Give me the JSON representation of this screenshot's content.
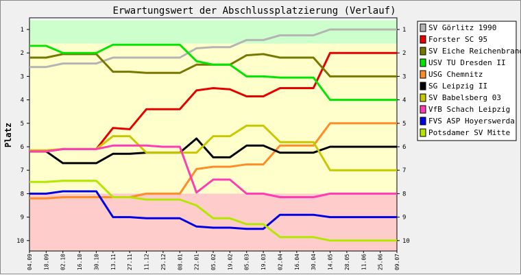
{
  "chart_data": {
    "type": "line",
    "title": "Erwartungswert der Abschlussplatzierung (Verlauf)",
    "ylabel": "Platz",
    "xlabel": "",
    "ylim": [
      1,
      10
    ],
    "y_ticks": [
      "1",
      "2",
      "3",
      "4",
      "5",
      "6",
      "7",
      "8",
      "9",
      "10"
    ],
    "y_inverted": true,
    "legend_position": "right",
    "zones": [
      {
        "from": 0.6,
        "to": 1.6,
        "color": "#ccffcc"
      },
      {
        "from": 1.6,
        "to": 8.0,
        "color": "#ffffcc"
      },
      {
        "from": 8.0,
        "to": 10.6,
        "color": "#ffcccc"
      }
    ],
    "x": [
      "04.09",
      "18.09",
      "02.10",
      "16.10",
      "30.10",
      "13.11",
      "27.11",
      "11.12",
      "25.12",
      "08.01",
      "22.01",
      "05.02",
      "19.02",
      "05.03",
      "19.03",
      "02.04",
      "16.04",
      "30.04",
      "14.05",
      "28.05",
      "11.06",
      "25.06",
      "09.07"
    ],
    "series": [
      {
        "name": "SV Görlitz 1990",
        "color": "#b4b4b4",
        "values": [
          2.6,
          2.6,
          2.45,
          2.45,
          2.45,
          2.2,
          2.2,
          2.2,
          2.2,
          2.2,
          1.8,
          1.75,
          1.75,
          1.45,
          1.45,
          1.25,
          1.25,
          1.25,
          1.0,
          1.0,
          1.0,
          1.0,
          1.0
        ]
      },
      {
        "name": "Forster SC 95",
        "color": "#e60000",
        "values": [
          6.2,
          6.2,
          6.1,
          6.1,
          6.1,
          5.2,
          5.25,
          4.4,
          4.4,
          4.4,
          3.6,
          3.5,
          3.55,
          3.85,
          3.85,
          3.5,
          3.5,
          3.5,
          2.0,
          2.0,
          2.0,
          2.0,
          2.0
        ]
      },
      {
        "name": "SV Eiche Reichenbrand",
        "color": "#787800",
        "values": [
          2.2,
          2.2,
          2.05,
          2.05,
          2.05,
          2.8,
          2.8,
          2.85,
          2.85,
          2.85,
          2.5,
          2.5,
          2.5,
          2.1,
          2.05,
          2.2,
          2.2,
          2.2,
          3.0,
          3.0,
          3.0,
          3.0,
          3.0
        ]
      },
      {
        "name": "USV TU Dresden II",
        "color": "#00e600",
        "values": [
          1.7,
          1.7,
          2.0,
          2.0,
          2.0,
          1.65,
          1.65,
          1.65,
          1.65,
          1.65,
          2.35,
          2.5,
          2.5,
          3.0,
          3.0,
          3.05,
          3.05,
          3.05,
          4.0,
          4.0,
          4.0,
          4.0,
          4.0
        ]
      },
      {
        "name": "USG Chemnitz",
        "color": "#ff8c28",
        "values": [
          8.2,
          8.2,
          8.15,
          8.15,
          8.15,
          8.15,
          8.15,
          8.0,
          8.0,
          8.0,
          6.95,
          6.85,
          6.85,
          6.75,
          6.75,
          5.95,
          5.95,
          5.95,
          5.0,
          5.0,
          5.0,
          5.0,
          5.0
        ]
      },
      {
        "name": "SG Leipzig II",
        "color": "#000000",
        "values": [
          6.2,
          6.2,
          6.7,
          6.7,
          6.7,
          6.3,
          6.3,
          6.25,
          6.25,
          6.25,
          5.65,
          6.45,
          6.45,
          5.95,
          5.95,
          6.25,
          6.25,
          6.25,
          6.0,
          6.0,
          6.0,
          6.0,
          6.0
        ]
      },
      {
        "name": "SV Babelsberg 03",
        "color": "#c8c800",
        "values": [
          6.15,
          6.15,
          6.1,
          6.1,
          6.1,
          5.55,
          5.55,
          6.25,
          6.25,
          6.25,
          6.25,
          5.55,
          5.55,
          5.1,
          5.1,
          5.8,
          5.8,
          5.8,
          7.0,
          7.0,
          7.0,
          7.0,
          7.0
        ]
      },
      {
        "name": "VfB Schach Leipzig",
        "color": "#ff3cb4",
        "values": [
          6.2,
          6.2,
          6.1,
          6.1,
          6.1,
          5.95,
          5.95,
          5.95,
          6.0,
          6.0,
          7.95,
          7.4,
          7.4,
          8.0,
          8.0,
          8.15,
          8.15,
          8.15,
          8.0,
          8.0,
          8.0,
          8.0,
          8.0
        ]
      },
      {
        "name": "FVS ASP Hoyerswerda",
        "color": "#0000e6",
        "values": [
          8.0,
          8.0,
          7.9,
          7.9,
          7.9,
          9.0,
          9.0,
          9.05,
          9.05,
          9.05,
          9.4,
          9.45,
          9.45,
          9.5,
          9.5,
          8.9,
          8.9,
          8.9,
          9.0,
          9.0,
          9.0,
          9.0,
          9.0
        ]
      },
      {
        "name": "Potsdamer SV Mitte",
        "color": "#b4e600",
        "values": [
          7.5,
          7.5,
          7.45,
          7.45,
          7.45,
          8.15,
          8.15,
          8.25,
          8.25,
          8.25,
          8.5,
          9.05,
          9.05,
          9.3,
          9.3,
          9.85,
          9.85,
          9.85,
          10.0,
          10.0,
          10.0,
          10.0,
          10.0
        ]
      }
    ]
  }
}
